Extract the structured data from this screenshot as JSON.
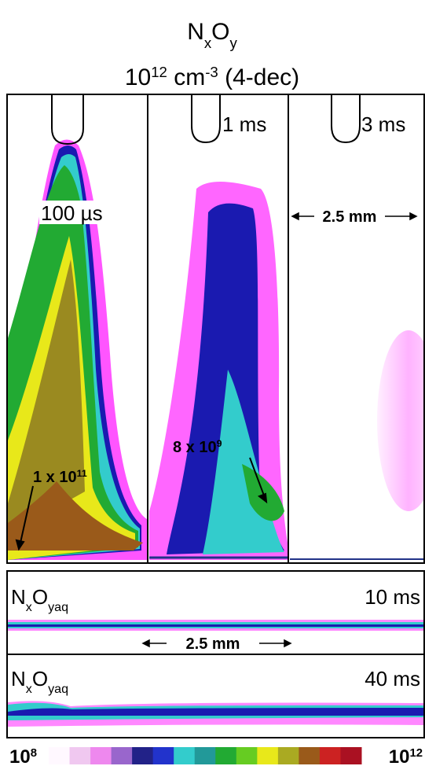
{
  "title": {
    "line1": [
      "N",
      "x",
      "O",
      "y"
    ],
    "line2": [
      "10",
      "12",
      " cm",
      "-3",
      " (4-dec)"
    ]
  },
  "panels": [
    {
      "time": "100 µs",
      "annotation": [
        "1 x 10",
        "11"
      ]
    },
    {
      "time": "1 ms",
      "annotation": [
        "8 x 10",
        "9"
      ]
    },
    {
      "time": "3 ms",
      "scale": "2.5 mm"
    }
  ],
  "aqueous": [
    {
      "label": [
        "N",
        "x",
        "O",
        "yaq"
      ],
      "time": "10 ms",
      "scale": "2.5 mm"
    },
    {
      "label": [
        "N",
        "x",
        "O",
        "yaq"
      ],
      "time": "40 ms"
    }
  ],
  "colorbar": {
    "min": [
      "10",
      "8"
    ],
    "max": [
      "10",
      "12"
    ]
  }
}
